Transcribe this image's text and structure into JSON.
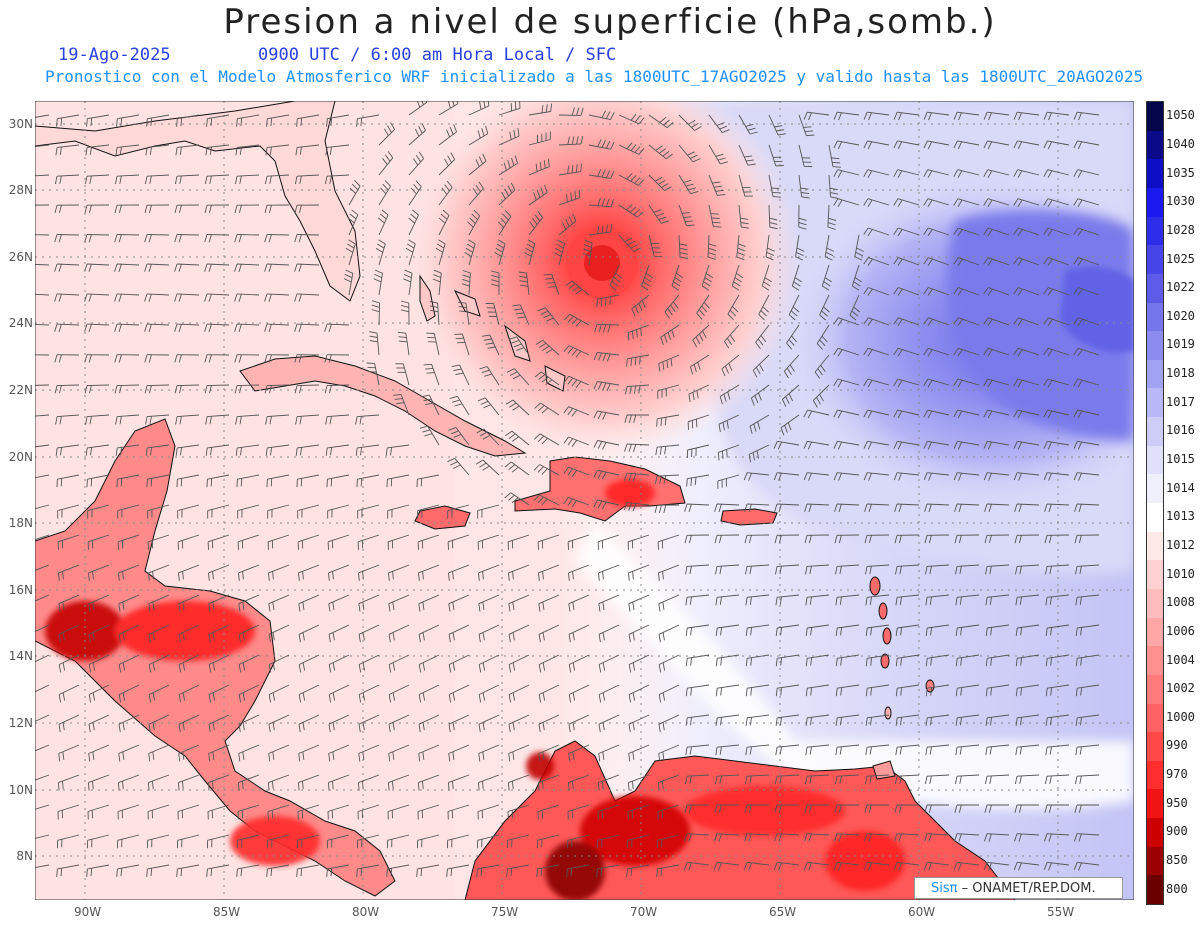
{
  "header": {
    "title": "Presion a nivel de superficie (hPa,somb.)",
    "date": "19-Ago-2025",
    "time": "0900 UTC / 6:00 am Hora Local / SFC",
    "description": "Pronostico con el Modelo Atmosferico WRF inicializado a las 1800UTC_17AGO2025 y valido hasta las  1800UTC_20AGO2025"
  },
  "axes": {
    "lat_labels": [
      "30N",
      "28N",
      "26N",
      "24N",
      "22N",
      "20N",
      "18N",
      "16N",
      "14N",
      "12N",
      "10N",
      "8N"
    ],
    "lon_labels": [
      "90W",
      "85W",
      "80W",
      "75W",
      "70W",
      "65W",
      "60W",
      "55W"
    ]
  },
  "legend": {
    "levels": [
      "1050",
      "1040",
      "1035",
      "1030",
      "1028",
      "1025",
      "1022",
      "1020",
      "1019",
      "1018",
      "1017",
      "1016",
      "1015",
      "1014",
      "1013",
      "1012",
      "1010",
      "1008",
      "1006",
      "1004",
      "1002",
      "1000",
      "990",
      "970",
      "950",
      "900",
      "850",
      "800"
    ],
    "colors": [
      "#06064a",
      "#0b0b8a",
      "#0e0ec4",
      "#1a1aee",
      "#2e2eea",
      "#4545e8",
      "#5c5ce8",
      "#7575ec",
      "#8c8cf0",
      "#a2a2f4",
      "#b8b8f6",
      "#cdcdf8",
      "#e0e0fa",
      "#f0f0fc",
      "#ffffff",
      "#ffe8e8",
      "#ffd2d2",
      "#ffbcbc",
      "#ffa6a6",
      "#ff9090",
      "#ff7a7a",
      "#ff6262",
      "#ff4848",
      "#ff2e2e",
      "#f01414",
      "#cc0000",
      "#9c0000",
      "#6a0000"
    ]
  },
  "storm": {
    "name_shown": false,
    "center_lon": -71.3,
    "center_lat": 25.8
  },
  "credit": {
    "brand": "Sisπ",
    "org": " – ONAMET/REP.DOM."
  }
}
